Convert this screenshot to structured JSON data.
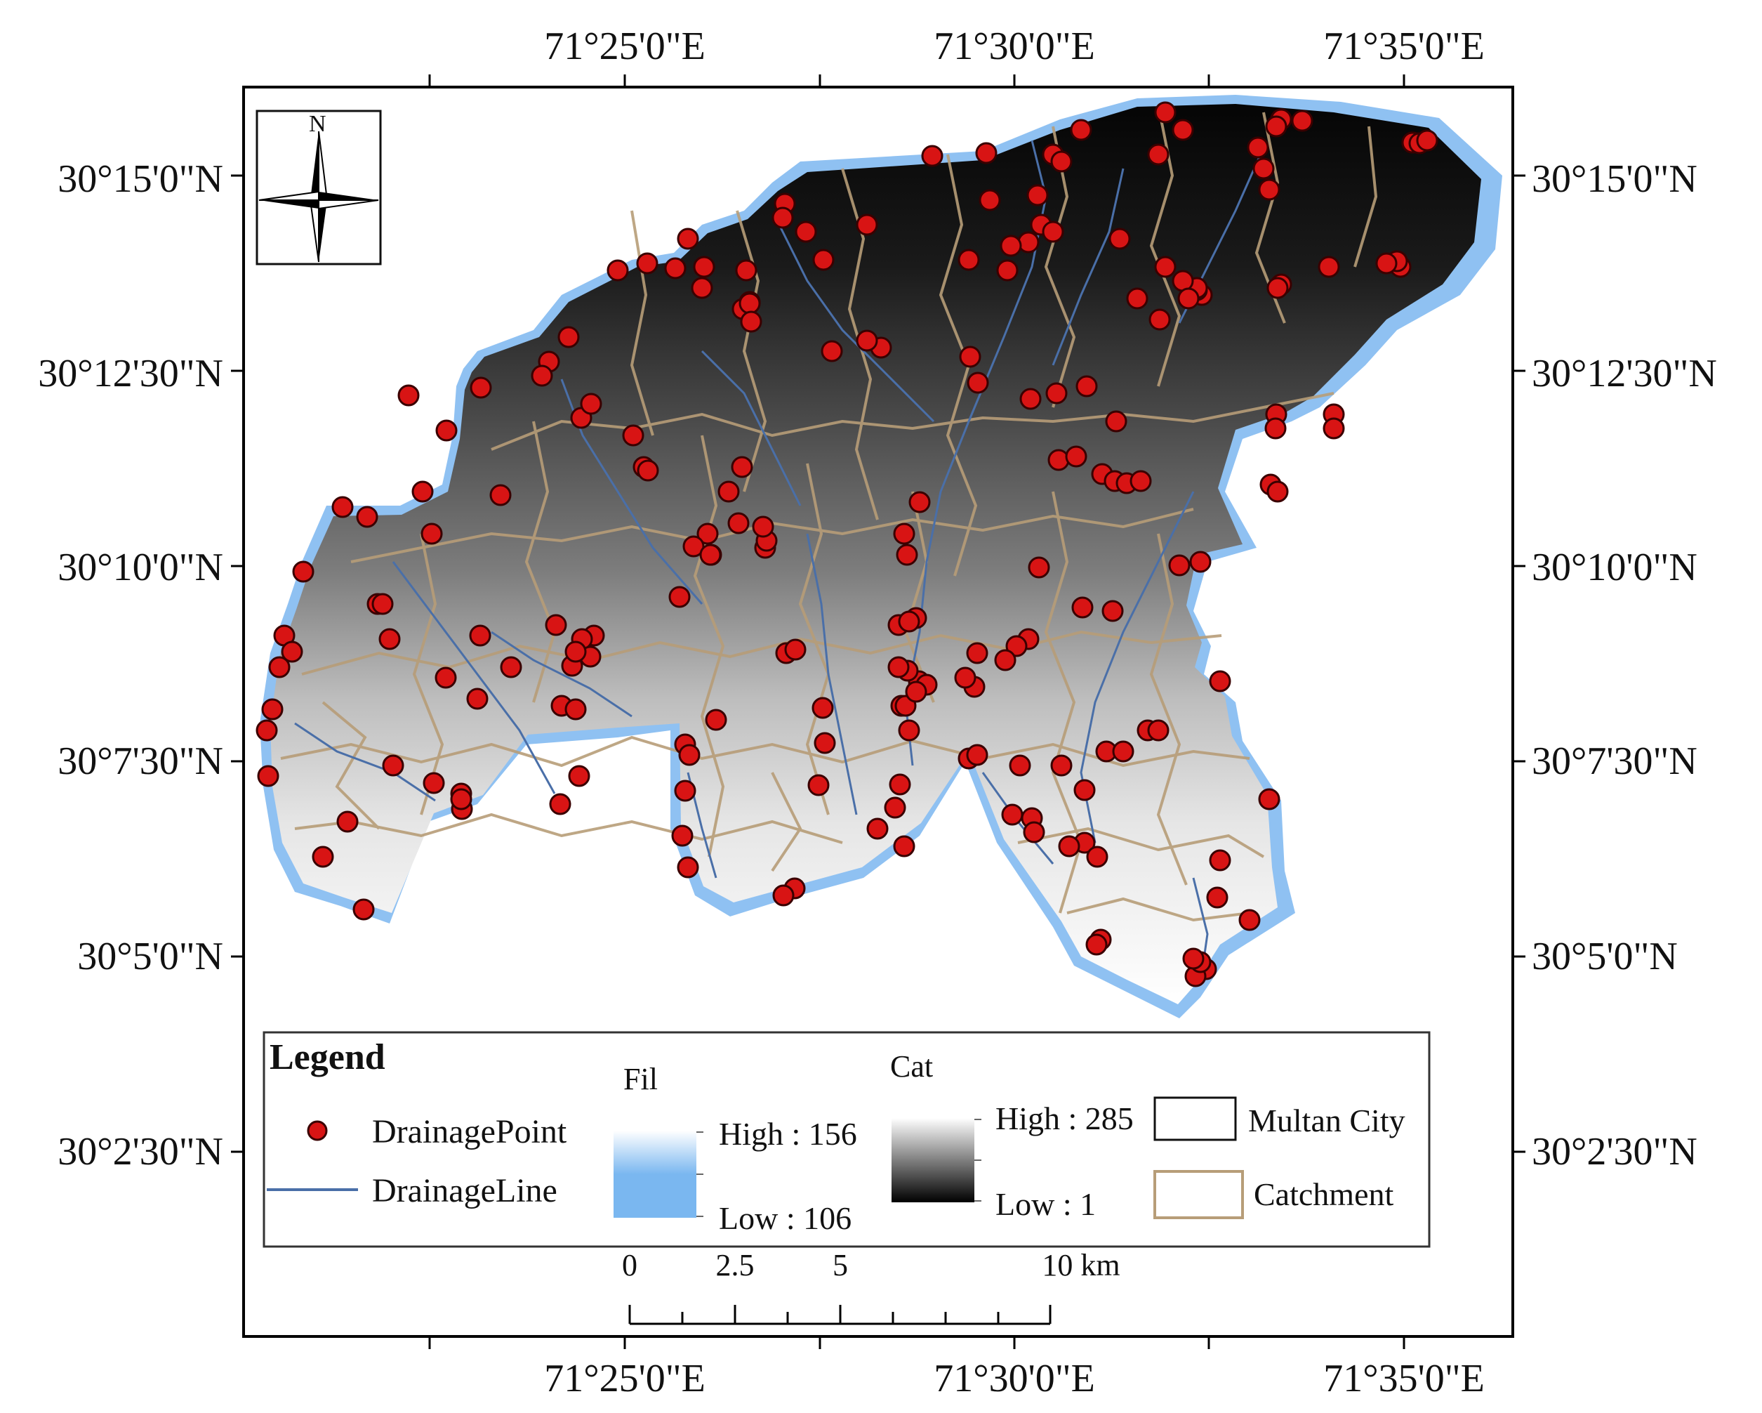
{
  "map": {
    "graticule": {
      "longitude_labels": [
        "71°25'0\"E",
        "71°30'0\"E",
        "71°35'0\"E"
      ],
      "latitude_labels": [
        "30°15'0\"N",
        "30°12'30\"N",
        "30°10'0\"N",
        "30°7'30\"N",
        "30°5'0\"N",
        "30°2'30\"N"
      ]
    },
    "north_arrow": {
      "label": "N"
    },
    "colors": {
      "catchment_border": "#b79d78",
      "drainage_line": "#4a6fa8",
      "drainage_point_fill": "#d81414",
      "drainage_point_stroke": "#3a0000",
      "fil_low": "#7ab7f0",
      "cat_high": "#ffffff",
      "cat_low": "#000000"
    }
  },
  "legend": {
    "title": "Legend",
    "drainage_point": "DrainagePoint",
    "drainage_line": "DrainageLine",
    "fil": {
      "title": "Fil",
      "high": "High : 156",
      "low": "Low : 106"
    },
    "cat": {
      "title": "Cat",
      "high": "High : 285",
      "low": "Low : 1"
    },
    "multan_city": "Multan City",
    "catchment": "Catchment"
  },
  "scale_bar": {
    "ticks": [
      "0",
      "2.5",
      "5",
      "10 km"
    ]
  }
}
